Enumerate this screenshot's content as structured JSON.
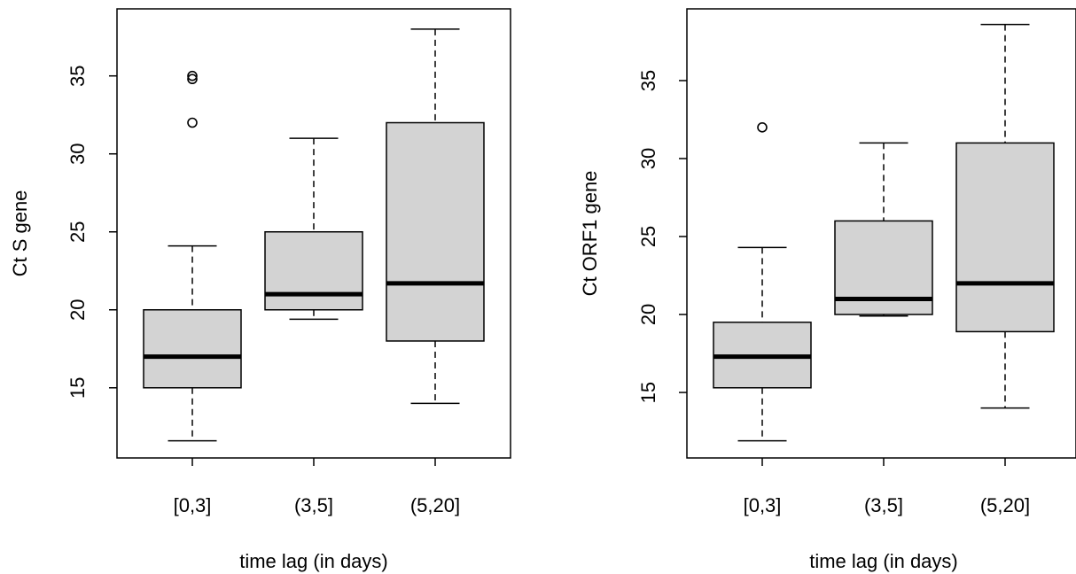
{
  "chart_data": [
    {
      "type": "boxplot",
      "xlabel": "time lag (in days)",
      "ylabel": "Ct S gene",
      "categories": [
        "[0,3]",
        "(3,5]",
        "(5,20]"
      ],
      "ylim": [
        10.5,
        39.3
      ],
      "yticks": [
        15,
        20,
        25,
        30,
        35
      ],
      "boxes": [
        {
          "category": "[0,3]",
          "lower_whisker": 11.6,
          "q1": 15.0,
          "median": 17.0,
          "q3": 20.0,
          "upper_whisker": 24.1,
          "outliers": [
            32.0,
            34.8,
            35.0
          ]
        },
        {
          "category": "(3,5]",
          "lower_whisker": 19.4,
          "q1": 20.0,
          "median": 21.0,
          "q3": 25.0,
          "upper_whisker": 31.0,
          "outliers": []
        },
        {
          "category": "(5,20]",
          "lower_whisker": 14.0,
          "q1": 18.0,
          "median": 21.7,
          "q3": 32.0,
          "upper_whisker": 38.0,
          "outliers": []
        }
      ],
      "box_fill": "#d3d3d3",
      "grid": false
    },
    {
      "type": "boxplot",
      "xlabel": "time lag (in days)",
      "ylabel": "Ct ORF1 gene",
      "categories": [
        "[0,3]",
        "(3,5]",
        "(5,20]"
      ],
      "ylim": [
        10.8,
        39.6
      ],
      "yticks": [
        15,
        20,
        25,
        30,
        35
      ],
      "boxes": [
        {
          "category": "[0,3]",
          "lower_whisker": 11.9,
          "q1": 15.3,
          "median": 17.3,
          "q3": 19.5,
          "upper_whisker": 24.3,
          "outliers": [
            32.0
          ]
        },
        {
          "category": "(3,5]",
          "lower_whisker": 19.9,
          "q1": 20.0,
          "median": 21.0,
          "q3": 26.0,
          "upper_whisker": 31.0,
          "outliers": []
        },
        {
          "category": "(5,20]",
          "lower_whisker": 14.0,
          "q1": 18.9,
          "median": 22.0,
          "q3": 31.0,
          "upper_whisker": 38.6,
          "outliers": []
        }
      ],
      "box_fill": "#d3d3d3",
      "grid": false
    }
  ]
}
